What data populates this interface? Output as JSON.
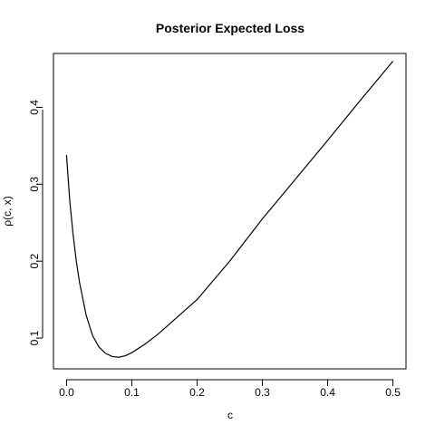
{
  "chart_data": {
    "type": "line",
    "title": "Posterior Expected Loss",
    "xlabel": "c",
    "ylabel": "ρ(c, x)",
    "xlim": [
      -0.02,
      0.52
    ],
    "ylim": [
      0.06,
      0.47
    ],
    "x_ticks": [
      0.0,
      0.1,
      0.2,
      0.3,
      0.4,
      0.5
    ],
    "x_tick_labels": [
      "0.0",
      "0.1",
      "0.2",
      "0.3",
      "0.4",
      "0.5"
    ],
    "y_ticks": [
      0.1,
      0.2,
      0.3,
      0.4
    ],
    "y_tick_labels": [
      "0.1",
      "0.2",
      "0.3",
      "0.4"
    ],
    "grid": false,
    "legend": "none",
    "series": [
      {
        "color": "#000000",
        "x": [
          0.0,
          0.005,
          0.01,
          0.015,
          0.02,
          0.03,
          0.04,
          0.05,
          0.06,
          0.07,
          0.08,
          0.09,
          0.1,
          0.12,
          0.14,
          0.16,
          0.18,
          0.2,
          0.25,
          0.3,
          0.35,
          0.4,
          0.45,
          0.5
        ],
        "y": [
          0.338,
          0.278,
          0.235,
          0.2,
          0.172,
          0.13,
          0.103,
          0.088,
          0.08,
          0.076,
          0.075,
          0.077,
          0.081,
          0.092,
          0.105,
          0.12,
          0.135,
          0.15,
          0.2,
          0.255,
          0.306,
          0.357,
          0.409,
          0.46
        ]
      }
    ]
  }
}
